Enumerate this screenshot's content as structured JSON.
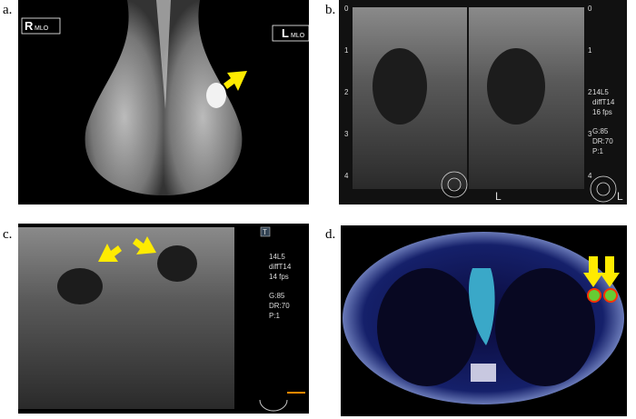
{
  "panel_a": {
    "label": "a.",
    "right_marker": "R",
    "right_view": "MLO",
    "left_marker": "L",
    "left_view": "MLO"
  },
  "panel_b": {
    "label": "b.",
    "depth_marks": [
      "0",
      "1",
      "2",
      "3",
      "4"
    ],
    "settings": [
      "14L5",
      "diffT14",
      "16 fps",
      "G:85",
      "DR:70",
      "P:1"
    ],
    "side_left": "L",
    "side_right": "L"
  },
  "panel_c": {
    "label": "c.",
    "marker": "T",
    "settings": [
      "14L5",
      "diffT14",
      "14 fps",
      "G:85",
      "DR:70",
      "P:1"
    ]
  },
  "panel_d": {
    "label": "d."
  }
}
